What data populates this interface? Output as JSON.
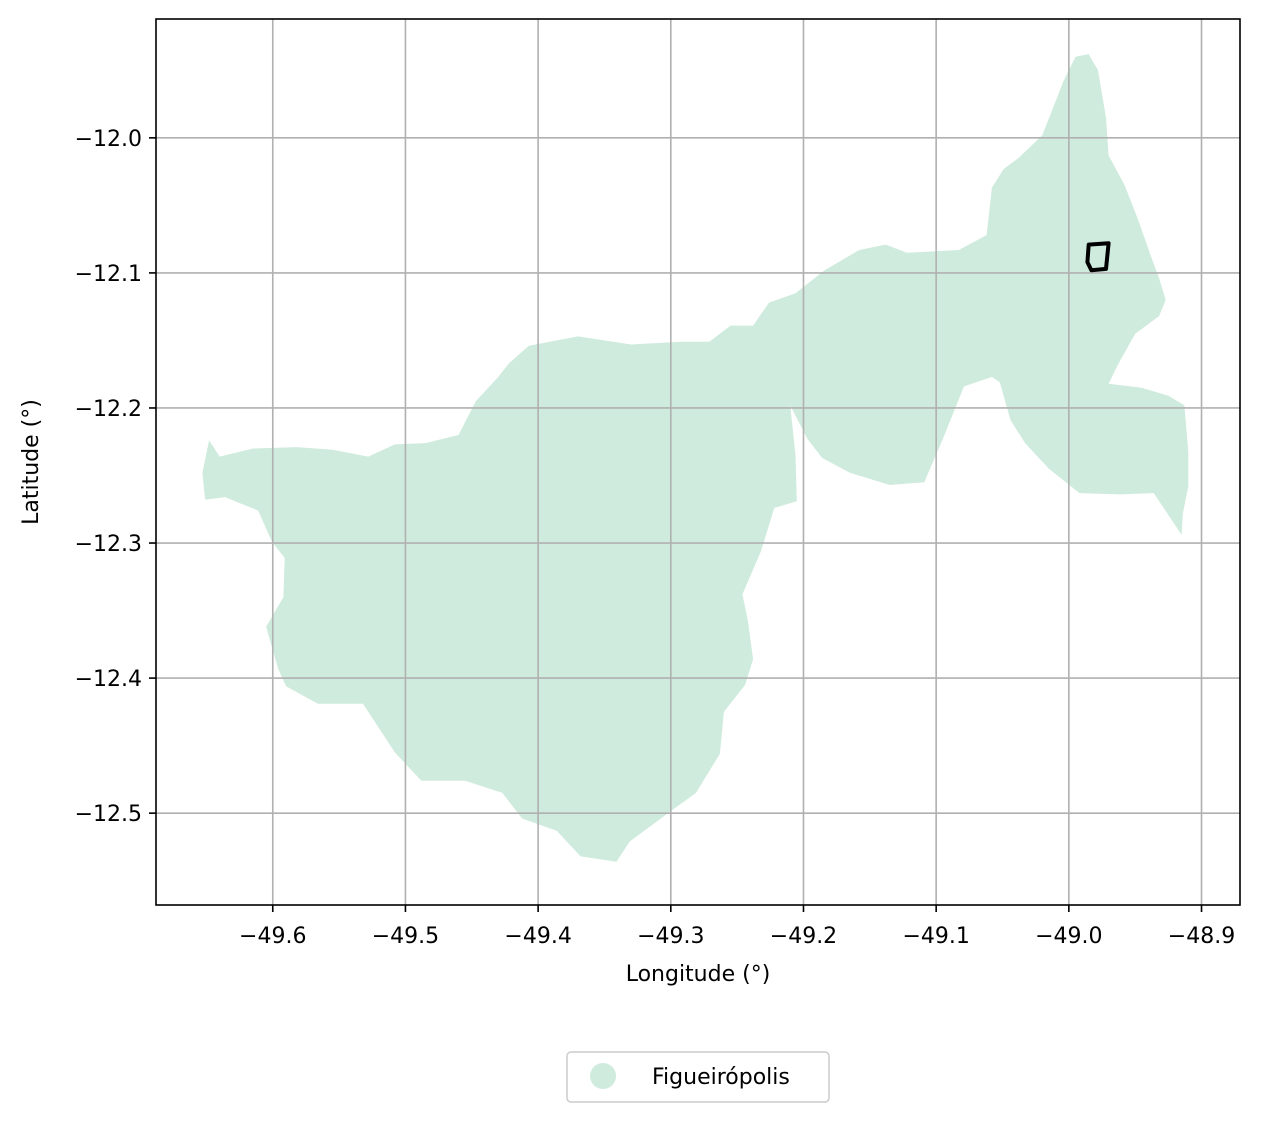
{
  "chart_data": {
    "type": "map",
    "title": "",
    "xlabel": "Longitude (°)",
    "ylabel": "Latitude (°)",
    "xlim": [
      -49.688,
      -48.871
    ],
    "ylim": [
      -12.568,
      -11.912
    ],
    "xticks": [
      -49.6,
      -49.5,
      -49.4,
      -49.3,
      -49.2,
      -49.1,
      -49.0,
      -48.9
    ],
    "xtick_labels": [
      "−49.6",
      "−49.5",
      "−49.4",
      "−49.3",
      "−49.2",
      "−49.1",
      "−49.0",
      "−48.9"
    ],
    "yticks": [
      -12.0,
      -12.1,
      -12.2,
      -12.3,
      -12.4,
      -12.5
    ],
    "ytick_labels": [
      "−12.0",
      "−12.1",
      "−12.2",
      "−12.3",
      "−12.4",
      "−12.5"
    ],
    "grid": true,
    "legend": {
      "placement": "bottom-center",
      "entries": [
        {
          "label": "Figueirópolis",
          "color": "#cfebdd"
        }
      ]
    },
    "regions": [
      {
        "name": "Figueirópolis",
        "fill": "#cfebdd",
        "polygon": [
          [
            -49.648,
            -12.224
          ],
          [
            -49.64,
            -12.236
          ],
          [
            -49.615,
            -12.23
          ],
          [
            -49.582,
            -12.229
          ],
          [
            -49.555,
            -12.231
          ],
          [
            -49.528,
            -12.236
          ],
          [
            -49.508,
            -12.227
          ],
          [
            -49.485,
            -12.226
          ],
          [
            -49.46,
            -12.22
          ],
          [
            -49.447,
            -12.195
          ],
          [
            -49.43,
            -12.177
          ],
          [
            -49.422,
            -12.167
          ],
          [
            -49.407,
            -12.154
          ],
          [
            -49.37,
            -12.147
          ],
          [
            -49.33,
            -12.153
          ],
          [
            -49.292,
            -12.151
          ],
          [
            -49.271,
            -12.151
          ],
          [
            -49.255,
            -12.139
          ],
          [
            -49.238,
            -12.139
          ],
          [
            -49.226,
            -12.122
          ],
          [
            -49.206,
            -12.115
          ],
          [
            -49.184,
            -12.098
          ],
          [
            -49.158,
            -12.083
          ],
          [
            -49.138,
            -12.079
          ],
          [
            -49.122,
            -12.085
          ],
          [
            -49.083,
            -12.083
          ],
          [
            -49.062,
            -12.072
          ],
          [
            -49.058,
            -12.037
          ],
          [
            -49.049,
            -12.023
          ],
          [
            -49.038,
            -12.015
          ],
          [
            -49.02,
            -11.998
          ],
          [
            -49.004,
            -11.958
          ],
          [
            -48.995,
            -11.94
          ],
          [
            -48.985,
            -11.938
          ],
          [
            -48.978,
            -11.95
          ],
          [
            -48.972,
            -11.985
          ],
          [
            -48.97,
            -12.013
          ],
          [
            -48.958,
            -12.035
          ],
          [
            -48.948,
            -12.06
          ],
          [
            -48.938,
            -12.088
          ],
          [
            -48.932,
            -12.104
          ],
          [
            -48.927,
            -12.12
          ],
          [
            -48.932,
            -12.132
          ],
          [
            -48.95,
            -12.145
          ],
          [
            -48.963,
            -12.168
          ],
          [
            -48.97,
            -12.182
          ],
          [
            -48.945,
            -12.185
          ],
          [
            -48.925,
            -12.191
          ],
          [
            -48.913,
            -12.198
          ],
          [
            -48.91,
            -12.232
          ],
          [
            -48.91,
            -12.258
          ],
          [
            -48.914,
            -12.278
          ],
          [
            -48.915,
            -12.294
          ],
          [
            -48.936,
            -12.263
          ],
          [
            -48.962,
            -12.264
          ],
          [
            -48.992,
            -12.263
          ],
          [
            -49.015,
            -12.245
          ],
          [
            -49.033,
            -12.226
          ],
          [
            -49.044,
            -12.209
          ],
          [
            -49.052,
            -12.181
          ],
          [
            -49.058,
            -12.177
          ],
          [
            -49.079,
            -12.184
          ],
          [
            -49.095,
            -12.223
          ],
          [
            -49.109,
            -12.255
          ],
          [
            -49.135,
            -12.257
          ],
          [
            -49.165,
            -12.248
          ],
          [
            -49.186,
            -12.237
          ],
          [
            -49.197,
            -12.223
          ],
          [
            -49.21,
            -12.198
          ],
          [
            -49.206,
            -12.235
          ],
          [
            -49.205,
            -12.269
          ],
          [
            -49.222,
            -12.274
          ],
          [
            -49.232,
            -12.306
          ],
          [
            -49.246,
            -12.338
          ],
          [
            -49.242,
            -12.357
          ],
          [
            -49.238,
            -12.386
          ],
          [
            -49.244,
            -12.405
          ],
          [
            -49.26,
            -12.425
          ],
          [
            -49.263,
            -12.456
          ],
          [
            -49.281,
            -12.485
          ],
          [
            -49.298,
            -12.497
          ],
          [
            -49.331,
            -12.521
          ],
          [
            -49.341,
            -12.536
          ],
          [
            -49.368,
            -12.532
          ],
          [
            -49.386,
            -12.513
          ],
          [
            -49.412,
            -12.504
          ],
          [
            -49.427,
            -12.485
          ],
          [
            -49.455,
            -12.476
          ],
          [
            -49.488,
            -12.476
          ],
          [
            -49.508,
            -12.455
          ],
          [
            -49.532,
            -12.419
          ],
          [
            -49.566,
            -12.419
          ],
          [
            -49.59,
            -12.406
          ],
          [
            -49.596,
            -12.393
          ],
          [
            -49.605,
            -12.362
          ],
          [
            -49.592,
            -12.34
          ],
          [
            -49.591,
            -12.311
          ],
          [
            -49.6,
            -12.3
          ],
          [
            -49.602,
            -12.296
          ],
          [
            -49.611,
            -12.276
          ],
          [
            -49.636,
            -12.266
          ],
          [
            -49.651,
            -12.268
          ],
          [
            -49.653,
            -12.248
          ]
        ]
      }
    ],
    "outlines": [
      {
        "stroke": "#000000",
        "polygon": [
          [
            -48.985,
            -12.079
          ],
          [
            -48.97,
            -12.078
          ],
          [
            -48.972,
            -12.097
          ],
          [
            -48.983,
            -12.098
          ],
          [
            -48.986,
            -12.092
          ]
        ]
      }
    ]
  }
}
